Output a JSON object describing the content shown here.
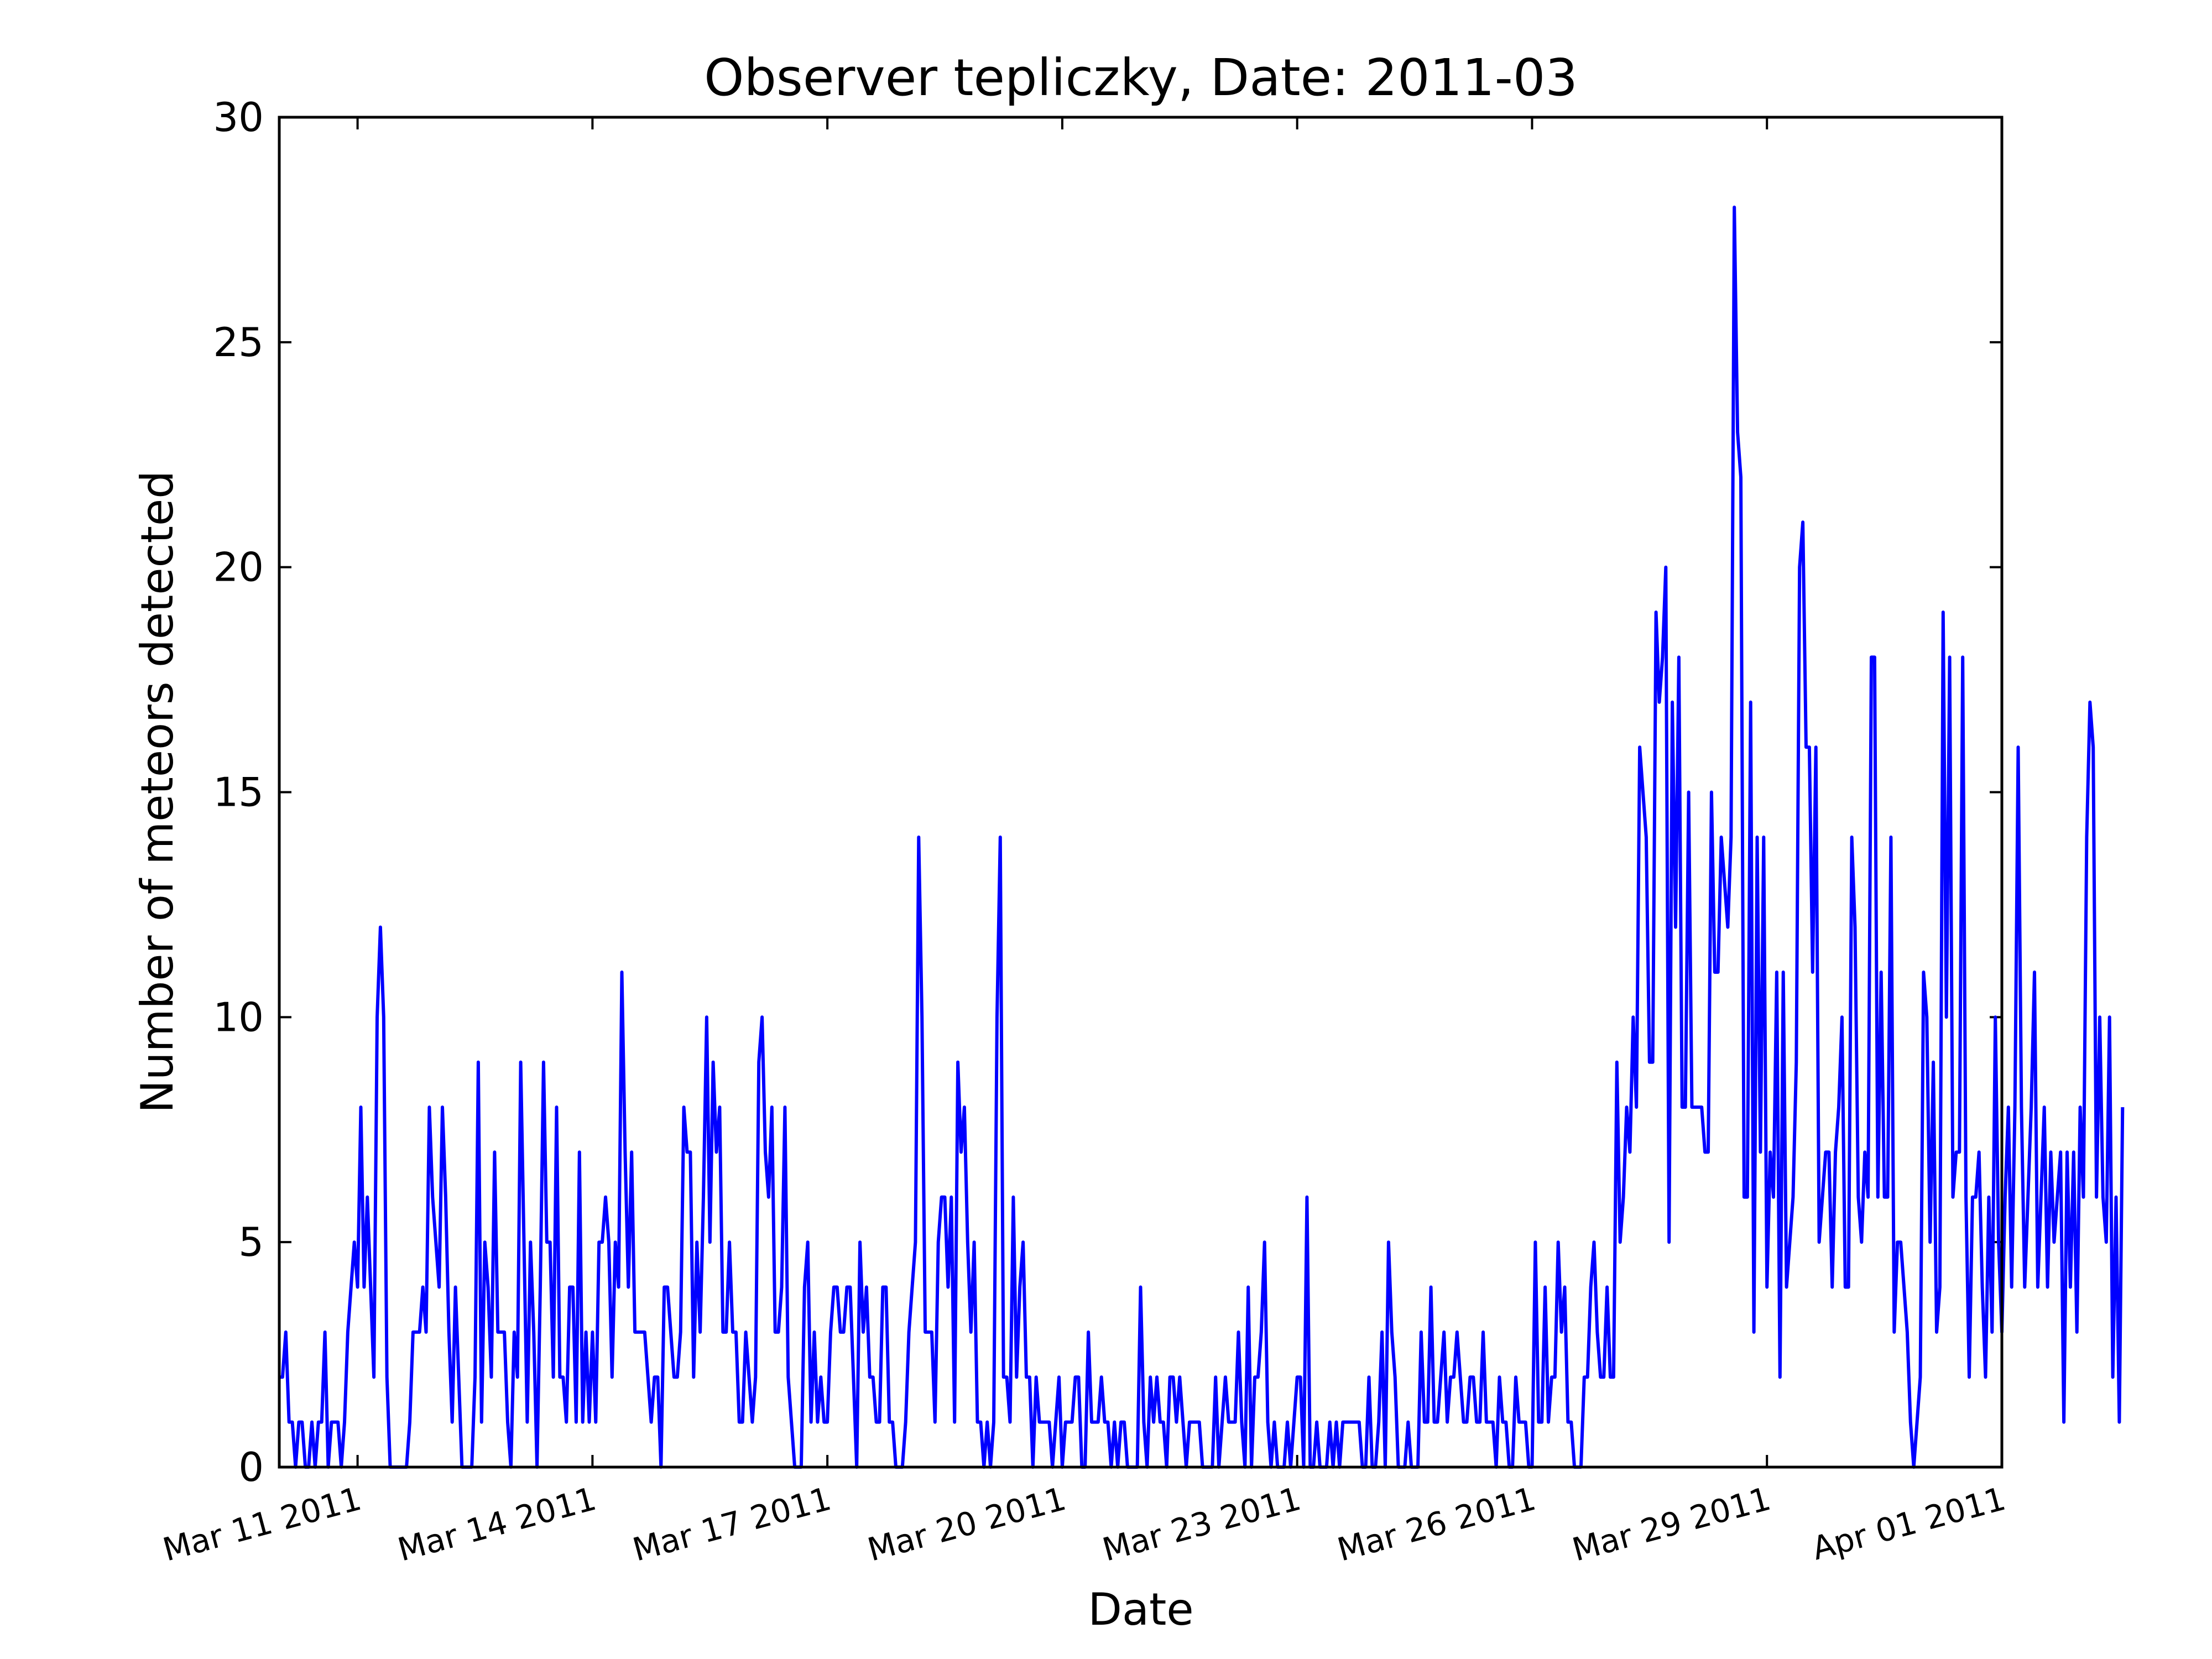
{
  "chart_data": {
    "type": "line",
    "title": "Observer tepliczky, Date: 2011-03",
    "xlabel": "Date",
    "ylabel": "Number of meteors detected",
    "xlim": [
      "2011-03-10T00:00",
      "2011-04-01T00:00"
    ],
    "ylim": [
      0,
      30
    ],
    "yticks": [
      0,
      5,
      10,
      15,
      20,
      25,
      30
    ],
    "xticks": [
      {
        "x": "2011-03-11T00:00",
        "label": "Mar 11 2011"
      },
      {
        "x": "2011-03-14T00:00",
        "label": "Mar 14 2011"
      },
      {
        "x": "2011-03-17T00:00",
        "label": "Mar 17 2011"
      },
      {
        "x": "2011-03-20T00:00",
        "label": "Mar 20 2011"
      },
      {
        "x": "2011-03-23T00:00",
        "label": "Mar 23 2011"
      },
      {
        "x": "2011-03-26T00:00",
        "label": "Mar 26 2011"
      },
      {
        "x": "2011-03-29T00:00",
        "label": "Mar 29 2011"
      },
      {
        "x": "2011-04-01T00:00",
        "label": "Apr 01 2011"
      }
    ],
    "grid": false,
    "series_color": "#0000ff",
    "series": [
      {
        "x_start": "2011-03-10T00:00",
        "x_step_hours": 1,
        "values": [
          2,
          2,
          3,
          1,
          1,
          0,
          1,
          1,
          0,
          0,
          1,
          0,
          1,
          1,
          3,
          0,
          1,
          1,
          1,
          0,
          1,
          3,
          4,
          5,
          4,
          8,
          4,
          6,
          4,
          2,
          10,
          12,
          10,
          2,
          0,
          0,
          0,
          0,
          0,
          0,
          1,
          3,
          3,
          3,
          4,
          3,
          8,
          6,
          5,
          4,
          8,
          6,
          3,
          1,
          4,
          2,
          0,
          0,
          0,
          0,
          2,
          9,
          1,
          5,
          4,
          2,
          7,
          3,
          3,
          3,
          1,
          0,
          3,
          2,
          9,
          5,
          1,
          5,
          3,
          0,
          4,
          9,
          5,
          5,
          2,
          8,
          2,
          2,
          1,
          4,
          4,
          1,
          7,
          1,
          3,
          1,
          3,
          1,
          5,
          5,
          6,
          5,
          2,
          5,
          4,
          11,
          7,
          4,
          7,
          3,
          3,
          3,
          3,
          2,
          1,
          2,
          2,
          0,
          4,
          4,
          3,
          2,
          2,
          3,
          8,
          7,
          7,
          2,
          5,
          3,
          6,
          10,
          5,
          9,
          7,
          8,
          3,
          3,
          5,
          3,
          3,
          1,
          1,
          3,
          2,
          1,
          2,
          9,
          10,
          7,
          6,
          8,
          3,
          3,
          4,
          8,
          2,
          1,
          0,
          0,
          0,
          4,
          5,
          1,
          3,
          1,
          2,
          1,
          1,
          3,
          4,
          4,
          3,
          3,
          4,
          4,
          2,
          0,
          5,
          3,
          4,
          2,
          2,
          1,
          1,
          4,
          4,
          1,
          1,
          0,
          0,
          0,
          1,
          3,
          4,
          5,
          14,
          10,
          3,
          3,
          3,
          1,
          5,
          6,
          6,
          4,
          6,
          1,
          9,
          7,
          8,
          5,
          3,
          5,
          1,
          1,
          0,
          1,
          0,
          1,
          10,
          14,
          2,
          2,
          1,
          6,
          2,
          4,
          5,
          2,
          2,
          0,
          2,
          1,
          1,
          1,
          1,
          0,
          1,
          2,
          0,
          1,
          1,
          1,
          2,
          2,
          0,
          0,
          3,
          1,
          1,
          1,
          2,
          1,
          1,
          0,
          1,
          0,
          1,
          1,
          0,
          0,
          0,
          0,
          4,
          1,
          0,
          2,
          1,
          2,
          1,
          1,
          0,
          2,
          2,
          1,
          2,
          1,
          0,
          1,
          1,
          1,
          1,
          0,
          0,
          0,
          0,
          2,
          0,
          1,
          2,
          1,
          1,
          1,
          3,
          1,
          0,
          4,
          0,
          2,
          2,
          3,
          5,
          1,
          0,
          1,
          0,
          0,
          0,
          1,
          0,
          1,
          2,
          2,
          0,
          6,
          0,
          0,
          1,
          0,
          0,
          0,
          1,
          0,
          1,
          0,
          1,
          1,
          1,
          1,
          1,
          1,
          0,
          0,
          2,
          0,
          0,
          1,
          3,
          0,
          5,
          3,
          2,
          0,
          0,
          0,
          1,
          0,
          0,
          0,
          3,
          1,
          1,
          4,
          1,
          1,
          2,
          3,
          1,
          2,
          2,
          3,
          2,
          1,
          1,
          2,
          2,
          1,
          1,
          3,
          1,
          1,
          1,
          0,
          2,
          1,
          1,
          0,
          0,
          2,
          1,
          1,
          1,
          0,
          0,
          5,
          1,
          1,
          4,
          1,
          2,
          2,
          5,
          3,
          4,
          1,
          1,
          0,
          0,
          0,
          2,
          2,
          4,
          5,
          3,
          2,
          2,
          4,
          2,
          2,
          9,
          5,
          6,
          8,
          7,
          10,
          8,
          16,
          15,
          14,
          9,
          9,
          19,
          17,
          18,
          20,
          5,
          17,
          12,
          18,
          8,
          8,
          15,
          8,
          8,
          8,
          8,
          7,
          7,
          15,
          11,
          11,
          14,
          13,
          12,
          14,
          28,
          23,
          22,
          6,
          6,
          17,
          3,
          14,
          7,
          14,
          4,
          7,
          6,
          11,
          2,
          11,
          4,
          5,
          6,
          9,
          20,
          21,
          16,
          16,
          11,
          16,
          5,
          6,
          7,
          7,
          4,
          7,
          8,
          10,
          4,
          4,
          14,
          12,
          6,
          5,
          7,
          6,
          18,
          18,
          6,
          11,
          6,
          6,
          14,
          3,
          5,
          5,
          4,
          3,
          1,
          0,
          1,
          2,
          11,
          10,
          5,
          9,
          3,
          4,
          19,
          10,
          18,
          6,
          7,
          7,
          18,
          6,
          2,
          6,
          6,
          7,
          4,
          2,
          6,
          3,
          10,
          5,
          3,
          6,
          8,
          4,
          8,
          16,
          8,
          4,
          6,
          8,
          11,
          4,
          6,
          8,
          4,
          7,
          5,
          6,
          7,
          1,
          7,
          4,
          7,
          3,
          8,
          6,
          14,
          17,
          16,
          6,
          10,
          6,
          5,
          10,
          2,
          6,
          1,
          8
        ]
      }
    ]
  }
}
